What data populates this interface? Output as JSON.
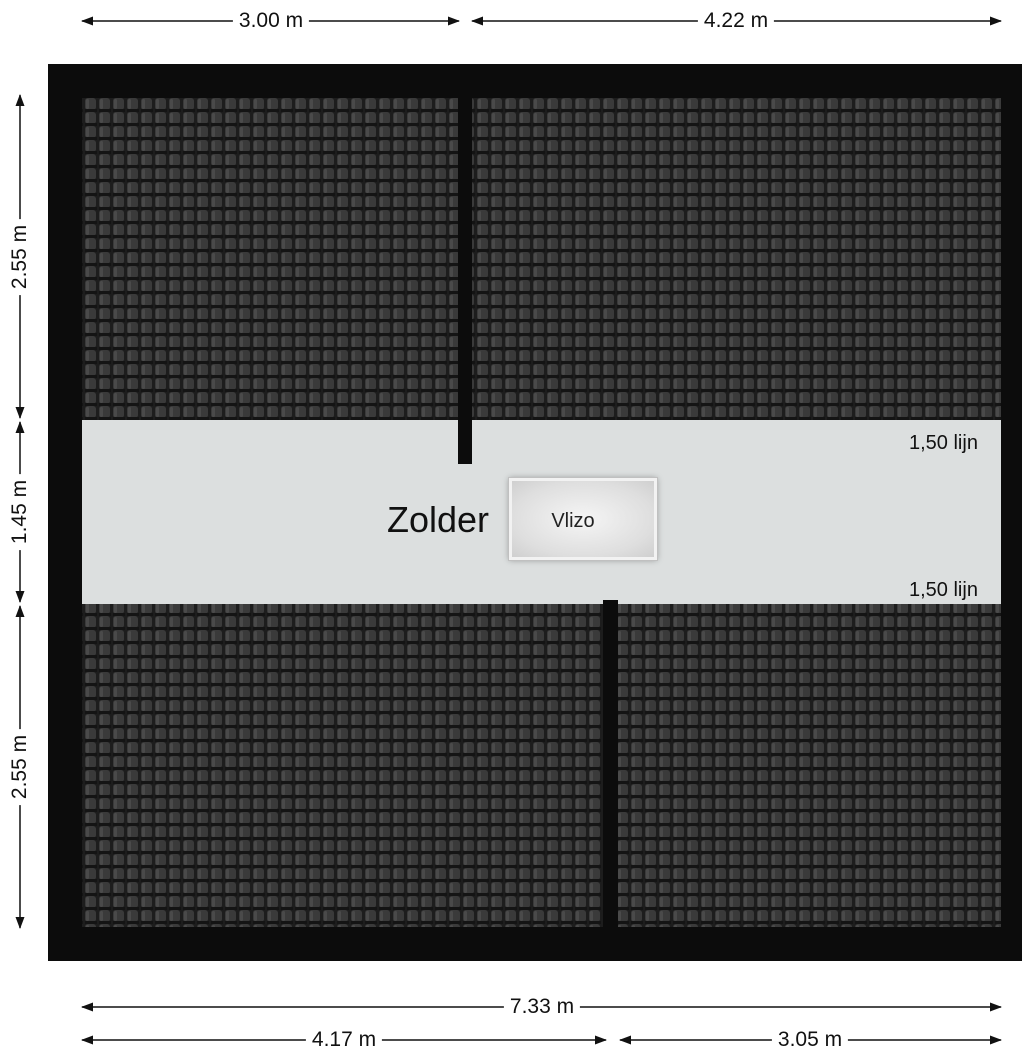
{
  "dimensions": {
    "top_left": "3.00 m",
    "top_right": "4.22 m",
    "left_upper": "2.55 m",
    "left_middle": "1.45 m",
    "left_lower": "2.55 m",
    "bottom_total": "7.33 m",
    "bottom_left": "4.17 m",
    "bottom_right": "3.05 m"
  },
  "room": {
    "name": "Zolder",
    "hatch_label": "Vlizo",
    "line_label_top": "1,50 lijn",
    "line_label_bottom": "1,50 lijn"
  },
  "colors": {
    "wall": "#0c0c0c",
    "roof_tile": "#3a3a3a",
    "floor": "#dcdfdf",
    "dimension_line": "#111111"
  }
}
